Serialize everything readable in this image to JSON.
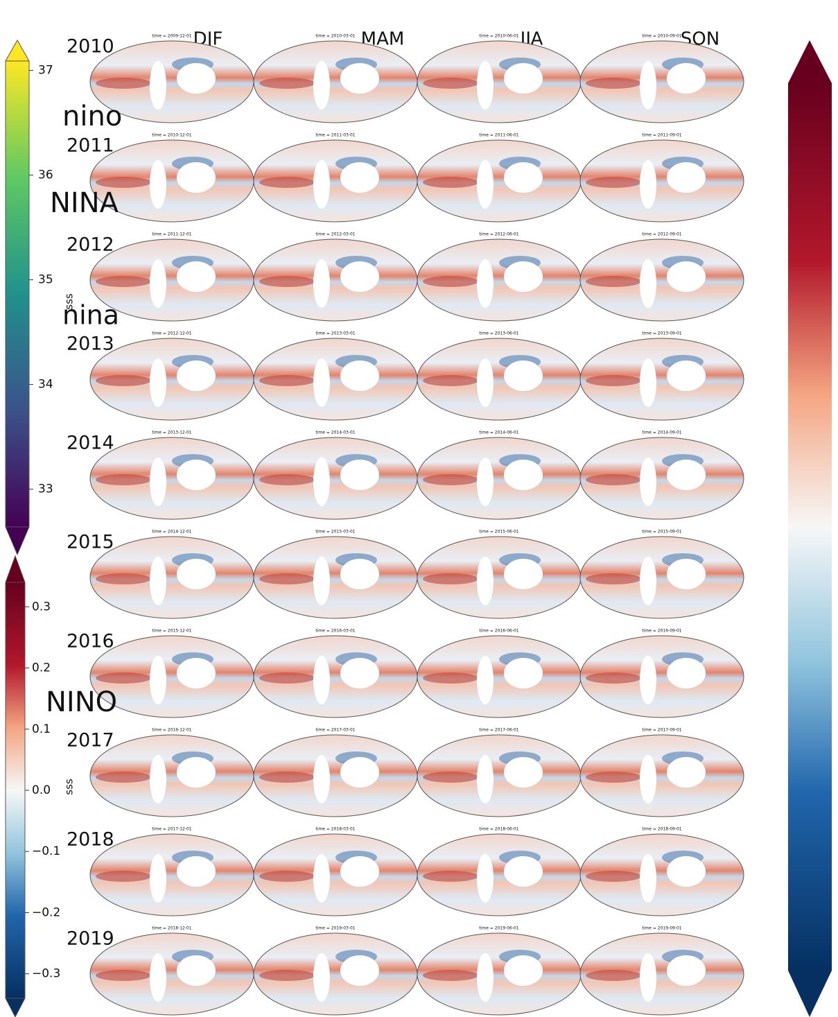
{
  "columns": [
    "DJF",
    "MAM",
    "JJA",
    "SON"
  ],
  "rows": [
    {
      "year": "2010",
      "panels": [
        "time = 2009-12-01",
        "time = 2010-03-01",
        "time = 2010-06-01",
        "time = 2010-09-01"
      ]
    },
    {
      "year": "2011",
      "panels": [
        "time = 2010-12-01",
        "time = 2011-03-01",
        "time = 2011-06-01",
        "time = 2011-09-01"
      ]
    },
    {
      "year": "2012",
      "panels": [
        "time = 2011-12-01",
        "time = 2012-03-01",
        "time = 2012-06-01",
        "time = 2012-09-01"
      ]
    },
    {
      "year": "2013",
      "panels": [
        "time = 2012-12-01",
        "time = 2013-03-01",
        "time = 2013-06-01",
        "time = 2013-09-01"
      ]
    },
    {
      "year": "2014",
      "panels": [
        "time = 2013-12-01",
        "time = 2014-03-01",
        "time = 2014-06-01",
        "time = 2014-09-01"
      ]
    },
    {
      "year": "2015",
      "panels": [
        "time = 2014-12-01",
        "time = 2015-03-01",
        "time = 2015-06-01",
        "time = 2015-09-01"
      ]
    },
    {
      "year": "2016",
      "panels": [
        "time = 2015-12-01",
        "time = 2016-03-01",
        "time = 2016-06-01",
        "time = 2016-09-01"
      ]
    },
    {
      "year": "2017",
      "panels": [
        "time = 2016-12-01",
        "time = 2017-03-01",
        "time = 2017-06-01",
        "time = 2017-09-01"
      ]
    },
    {
      "year": "2018",
      "panels": [
        "time = 2017-12-01",
        "time = 2018-03-01",
        "time = 2018-06-01",
        "time = 2018-09-01"
      ]
    },
    {
      "year": "2019",
      "panels": [
        "time = 2018-12-01",
        "time = 2019-03-01",
        "time = 2019-06-01",
        "time = 2019-09-01"
      ]
    }
  ],
  "annotations": [
    "nino",
    "NINA",
    "nina",
    "NINO"
  ],
  "colorbars": [
    {
      "label": "sss",
      "vlim": [
        32.64,
        37.09
      ],
      "ticks": [
        37,
        36,
        35,
        34,
        33
      ]
    },
    {
      "label": "sss",
      "vlim": [
        -0.34,
        0.34
      ],
      "ticks": [
        0.3,
        0.2,
        0.1,
        {
          "value": 0,
          "label": "0.0"
        },
        {
          "value": -0.1,
          "label": "−0.1"
        },
        {
          "value": -0.2,
          "label": "−0.2"
        },
        {
          "value": -0.3,
          "label": "−0.3"
        }
      ]
    }
  ]
}
